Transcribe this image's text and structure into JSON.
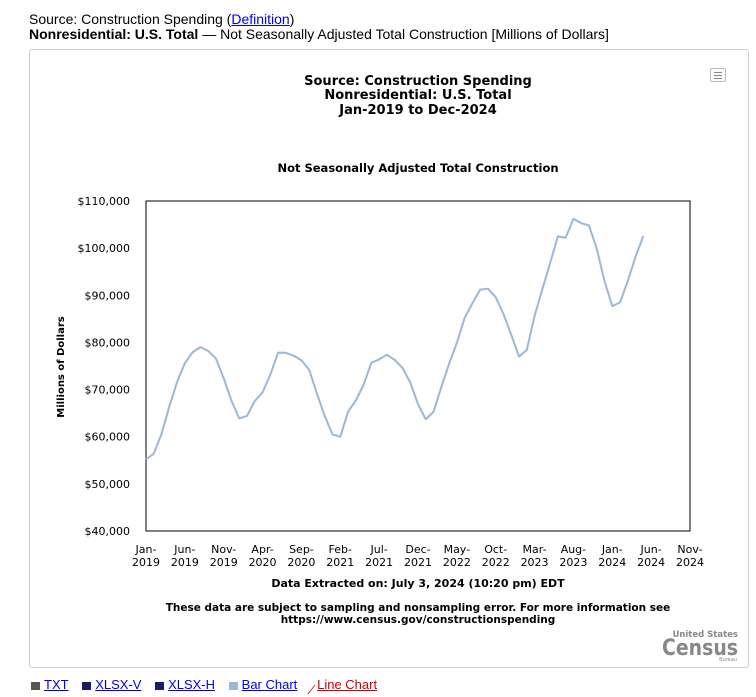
{
  "header": {
    "source_prefix": "Source: Construction Spending (",
    "definition_link": "Definition",
    "source_suffix": ")",
    "series_name": "Nonresidential: U.S. Total",
    "series_desc": " — Not Seasonally Adjusted Total Construction [Millions of Dollars]"
  },
  "footer": {
    "extracted": "Data Extracted on: July 3, 2024 (10:20 pm) EDT",
    "note_line1": "These data are subject to sampling and nonsampling error. For more information see",
    "note_line2": "https://www.census.gov/constructionspending"
  },
  "logo": {
    "top": "United States",
    "main": "Census",
    "sub": "Bureau"
  },
  "bottom_links": [
    "TXT",
    "XLSX-V",
    "XLSX-H",
    "Bar Chart",
    "Line Chart"
  ],
  "colors": {
    "line": "#9db7d6",
    "plot_border": "#000000",
    "logo": "#888888"
  },
  "chart_data": {
    "type": "line",
    "title_lines": [
      "Source: Construction Spending",
      "Nonresidential: U.S. Total",
      "Jan-2019 to Dec-2024"
    ],
    "subtitle": "Not Seasonally Adjusted Total Construction",
    "ylabel": "Millions of Dollars",
    "xlabel": "",
    "ylim": [
      40000,
      110000
    ],
    "yticks": [
      40000,
      50000,
      60000,
      70000,
      80000,
      90000,
      100000,
      110000
    ],
    "ytick_labels": [
      "$40,000",
      "$50,000",
      "$60,000",
      "$70,000",
      "$80,000",
      "$90,000",
      "$100,000",
      "$110,000"
    ],
    "xlim_months": [
      0,
      70
    ],
    "xticks": [
      {
        "month": 0,
        "l1": "Jan-",
        "l2": "2019"
      },
      {
        "month": 5,
        "l1": "Jun-",
        "l2": "2019"
      },
      {
        "month": 10,
        "l1": "Nov-",
        "l2": "2019"
      },
      {
        "month": 15,
        "l1": "Apr-",
        "l2": "2020"
      },
      {
        "month": 20,
        "l1": "Sep-",
        "l2": "2020"
      },
      {
        "month": 25,
        "l1": "Feb-",
        "l2": "2021"
      },
      {
        "month": 30,
        "l1": "Jul-",
        "l2": "2021"
      },
      {
        "month": 35,
        "l1": "Dec-",
        "l2": "2021"
      },
      {
        "month": 40,
        "l1": "May-",
        "l2": "2022"
      },
      {
        "month": 45,
        "l1": "Oct-",
        "l2": "2022"
      },
      {
        "month": 50,
        "l1": "Mar-",
        "l2": "2023"
      },
      {
        "month": 55,
        "l1": "Aug-",
        "l2": "2023"
      },
      {
        "month": 60,
        "l1": "Jan-",
        "l2": "2024"
      },
      {
        "month": 65,
        "l1": "Jun-",
        "l2": "2024"
      },
      {
        "month": 70,
        "l1": "Nov-",
        "l2": "2024"
      }
    ],
    "series": [
      {
        "name": "Nonresidential: U.S. Total",
        "start": "Jan-2019",
        "values": [
          55200,
          56400,
          60600,
          66400,
          71600,
          75600,
          77900,
          79000,
          78200,
          76600,
          72400,
          67600,
          63900,
          64400,
          67600,
          69400,
          73200,
          77800,
          77800,
          77200,
          76200,
          74200,
          69100,
          64400,
          60500,
          60000,
          65300,
          67700,
          71000,
          75700,
          76400,
          77400,
          76300,
          74600,
          71500,
          66900,
          63700,
          65300,
          70500,
          75500,
          79900,
          85200,
          88300,
          91200,
          91400,
          89600,
          86000,
          81600,
          77000,
          78400,
          85600,
          91300,
          96800,
          102500,
          102200,
          106200,
          105300,
          104800,
          99900,
          93000,
          87700,
          88500,
          93100,
          98200,
          102600
        ]
      }
    ]
  }
}
